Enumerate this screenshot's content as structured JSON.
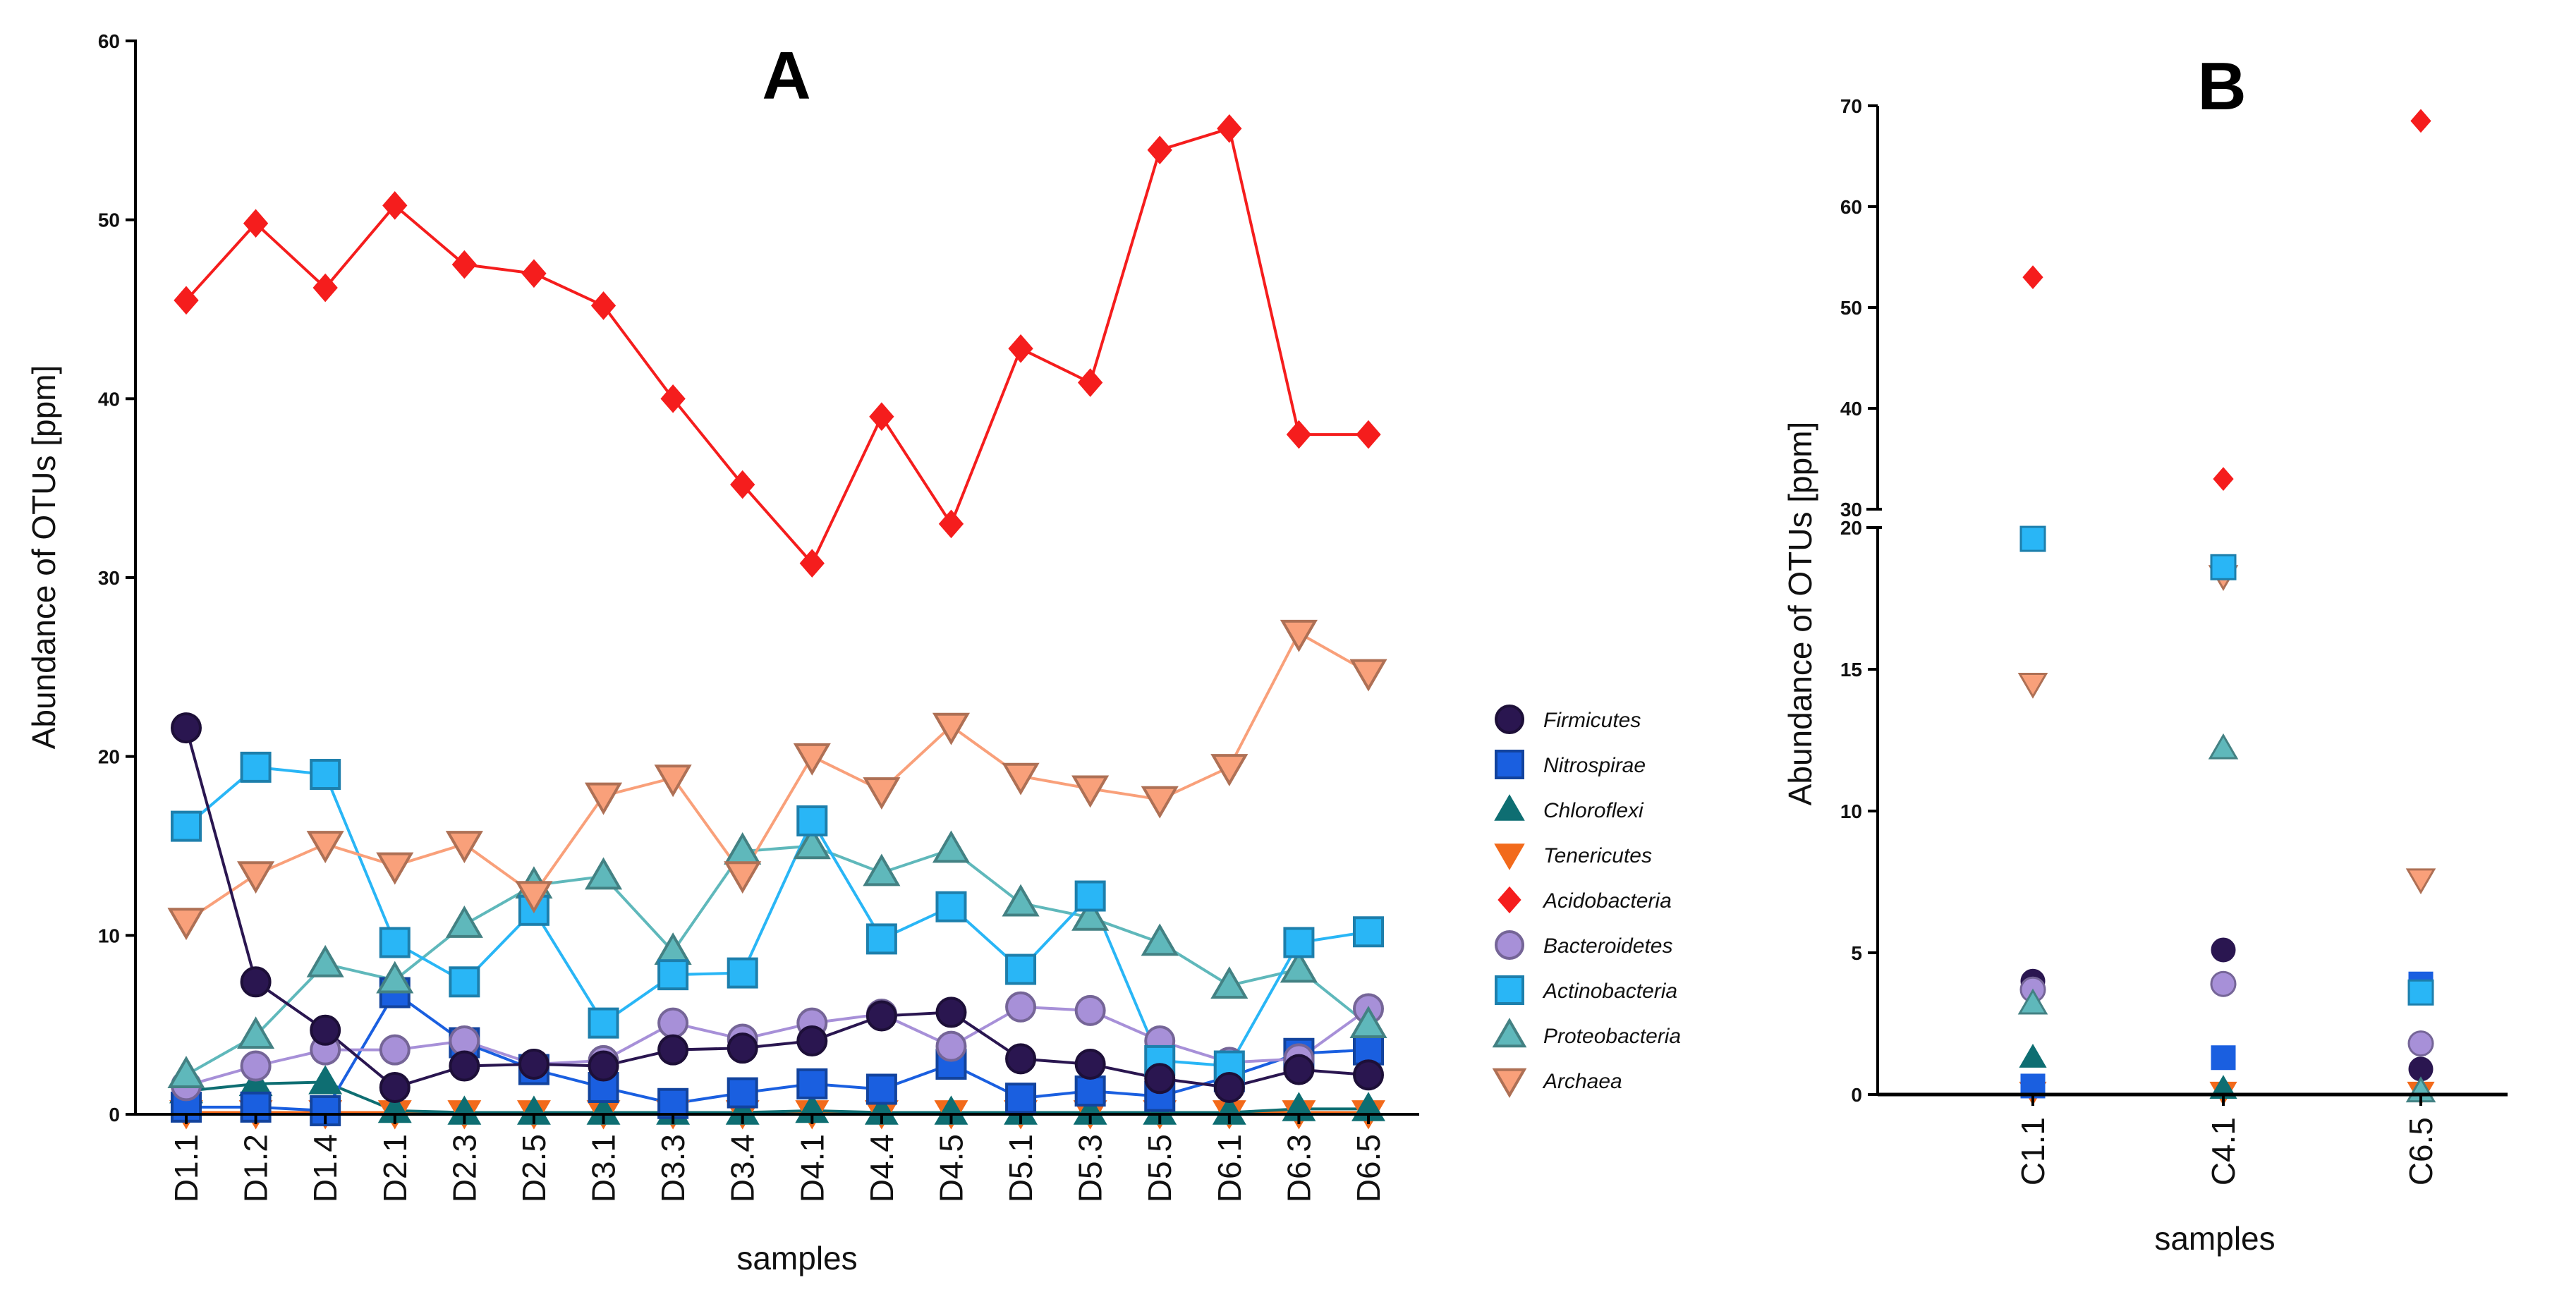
{
  "chart_data": [
    {
      "type": "line",
      "panel_label": "A",
      "xlabel": "samples",
      "ylabel": "Abundance of OTUs [ppm]",
      "ylim": [
        0,
        60
      ],
      "yticks": [
        0,
        10,
        20,
        30,
        40,
        50,
        60
      ],
      "categories": [
        "D1.1",
        "D1.2",
        "D1.4",
        "D2.1",
        "D2.3",
        "D2.5",
        "D3.1",
        "D3.3",
        "D3.4",
        "D4.1",
        "D4.4",
        "D4.5",
        "D5.1",
        "D5.3",
        "D5.5",
        "D6.1",
        "D6.3",
        "D6.5"
      ],
      "series": [
        {
          "name": "Acidobacteria",
          "color": "#f51d1d",
          "marker": "diamond",
          "values": [
            45.5,
            49.8,
            46.2,
            50.8,
            47.5,
            47.0,
            45.2,
            40.0,
            35.2,
            30.8,
            39.0,
            33.0,
            42.8,
            40.9,
            53.9,
            55.1,
            38.0,
            38.0
          ]
        },
        {
          "name": "Archaea",
          "color": "#f9a07a",
          "marker": "triangle-down",
          "values": [
            10.8,
            13.4,
            15.1,
            13.9,
            15.1,
            12.3,
            17.8,
            18.8,
            13.4,
            20.0,
            18.1,
            21.7,
            18.9,
            18.2,
            17.6,
            19.4,
            26.9,
            24.7
          ]
        },
        {
          "name": "Proteobacteria",
          "color": "#5fb8bb",
          "marker": "triangle",
          "values": [
            2.2,
            4.4,
            8.4,
            7.5,
            10.6,
            12.8,
            13.3,
            9.1,
            14.7,
            15.0,
            13.5,
            14.8,
            11.8,
            11.0,
            9.6,
            7.2,
            8.1,
            5.0
          ]
        },
        {
          "name": "Actinobacteria",
          "color": "#29b6f6",
          "marker": "square",
          "values": [
            16.1,
            19.4,
            19.0,
            9.6,
            7.4,
            11.4,
            5.1,
            7.8,
            7.9,
            16.4,
            9.8,
            11.6,
            8.1,
            12.2,
            3.0,
            2.7,
            9.6,
            10.2
          ]
        },
        {
          "name": "Bacteroidetes",
          "color": "#a790d8",
          "marker": "circle",
          "values": [
            1.6,
            2.7,
            3.6,
            3.6,
            4.1,
            2.8,
            3.0,
            5.1,
            4.2,
            5.1,
            5.6,
            3.8,
            6.0,
            5.8,
            4.1,
            2.9,
            3.1,
            5.9
          ]
        },
        {
          "name": "Firmicutes",
          "color": "#2a1650",
          "marker": "circle",
          "values": [
            21.6,
            7.4,
            4.7,
            1.5,
            2.7,
            2.8,
            2.7,
            3.6,
            3.7,
            4.1,
            5.5,
            5.7,
            3.1,
            2.8,
            2.0,
            1.5,
            2.5,
            2.2
          ]
        },
        {
          "name": "Nitrospirae",
          "color": "#1a5fe0",
          "marker": "square",
          "values": [
            0.4,
            0.4,
            0.2,
            6.8,
            4.0,
            2.5,
            1.5,
            0.6,
            1.2,
            1.7,
            1.4,
            2.8,
            0.9,
            1.3,
            1.0,
            2.1,
            3.4,
            3.6
          ]
        },
        {
          "name": "Chloroflexi",
          "color": "#0e6e72",
          "marker": "triangle",
          "values": [
            1.3,
            1.7,
            1.8,
            0.2,
            0.1,
            0.1,
            0.1,
            0.1,
            0.1,
            0.2,
            0.1,
            0.1,
            0.1,
            0.1,
            0.1,
            0.1,
            0.3,
            0.3
          ]
        },
        {
          "name": "Tenericutes",
          "color": "#f26a1b",
          "marker": "triangle-down",
          "values": [
            0.1,
            0.1,
            0.1,
            0.1,
            0.1,
            0.1,
            0.1,
            0.1,
            0.1,
            0.1,
            0.1,
            0.1,
            0.1,
            0.1,
            0.1,
            0.1,
            0.1,
            0.1
          ]
        }
      ],
      "legend": {
        "placement": "right",
        "entries": [
          "Firmicutes",
          "Nitrospirae",
          "Chloroflexi",
          "Tenericutes",
          "Acidobacteria",
          "Bacteroidetes",
          "Actinobacteria",
          "Proteobacteria",
          "Archaea"
        ]
      }
    },
    {
      "type": "scatter",
      "panel_label": "B",
      "xlabel": "samples",
      "ylabel": "Abundance of OTUs [ppm]",
      "axis_break": {
        "lower": [
          0,
          20
        ],
        "upper": [
          30,
          70
        ]
      },
      "yticks_lower": [
        0,
        5,
        10,
        15,
        20
      ],
      "yticks_upper": [
        30,
        40,
        50,
        60,
        70
      ],
      "categories": [
        "C1.1",
        "C4.1",
        "C6.5"
      ],
      "series": [
        {
          "name": "Firmicutes",
          "color": "#2a1650",
          "marker": "circle",
          "values": [
            4.0,
            5.1,
            0.9
          ]
        },
        {
          "name": "Nitrospirae",
          "color": "#1a5fe0",
          "marker": "square",
          "values": [
            0.3,
            1.3,
            3.9
          ]
        },
        {
          "name": "Chloroflexi",
          "color": "#0e6e72",
          "marker": "triangle",
          "values": [
            1.3,
            0.2,
            0.1
          ]
        },
        {
          "name": "Tenericutes",
          "color": "#f26a1b",
          "marker": "triangle-down",
          "values": [
            0.1,
            0.1,
            0.1
          ]
        },
        {
          "name": "Acidobacteria",
          "color": "#f51d1d",
          "marker": "diamond",
          "values": [
            53.0,
            33.0,
            68.5
          ]
        },
        {
          "name": "Bacteroidetes",
          "color": "#a790d8",
          "marker": "circle",
          "values": [
            3.7,
            3.9,
            1.8
          ]
        },
        {
          "name": "Actinobacteria",
          "color": "#29b6f6",
          "marker": "square",
          "values": [
            19.6,
            18.6,
            3.6
          ]
        },
        {
          "name": "Proteobacteria",
          "color": "#5fb8bb",
          "marker": "triangle",
          "values": [
            3.2,
            12.2,
            0.1
          ]
        },
        {
          "name": "Archaea",
          "color": "#f9a07a",
          "marker": "triangle-down",
          "values": [
            14.5,
            18.3,
            7.6
          ]
        }
      ]
    }
  ]
}
